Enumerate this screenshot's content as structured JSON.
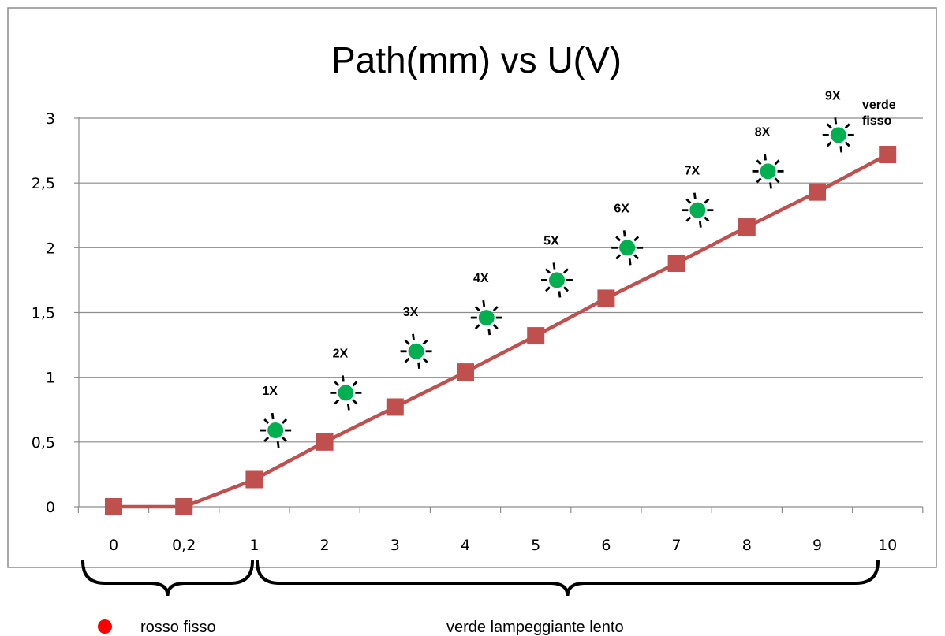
{
  "chart_data": {
    "type": "line",
    "title": "Path(mm) vs U(V)",
    "categories": [
      "0",
      "0,2",
      "1",
      "2",
      "3",
      "4",
      "5",
      "6",
      "7",
      "8",
      "9",
      "10"
    ],
    "y_ticks": [
      "0",
      "0,5",
      "1",
      "1,5",
      "2",
      "2,5",
      "3"
    ],
    "ylim": [
      0,
      3
    ],
    "grid": true,
    "series": [
      {
        "values": [
          0,
          0,
          0.21,
          0.5,
          0.77,
          1.04,
          1.32,
          1.61,
          1.88,
          2.16,
          2.43,
          2.72
        ],
        "color": "#c0504d",
        "marker": "square"
      }
    ],
    "markers": [
      {
        "label": "1X",
        "x_index": 2.3,
        "y": 0.59
      },
      {
        "label": "2X",
        "x_index": 3.3,
        "y": 0.88
      },
      {
        "label": "3X",
        "x_index": 4.3,
        "y": 1.2
      },
      {
        "label": "4X",
        "x_index": 5.3,
        "y": 1.46
      },
      {
        "label": "5X",
        "x_index": 6.3,
        "y": 1.75
      },
      {
        "label": "6X",
        "x_index": 7.3,
        "y": 2.0
      },
      {
        "label": "7X",
        "x_index": 8.3,
        "y": 2.29
      },
      {
        "label": "8X",
        "x_index": 9.3,
        "y": 2.59
      },
      {
        "label": "9X",
        "x_index": 10.3,
        "y": 2.87
      }
    ],
    "marker_color": "#00b050",
    "annotation": [
      "verde",
      "fisso"
    ],
    "braces": [
      {
        "from_index": 0,
        "to_index": 2,
        "caption": "rosso fisso",
        "dot_color": "#ff0000"
      },
      {
        "from_index": 2,
        "to_index": 11,
        "caption": "verde lampeggiante lento"
      }
    ]
  }
}
